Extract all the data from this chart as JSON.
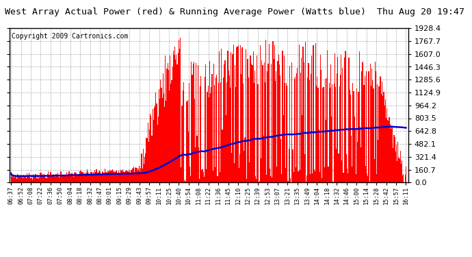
{
  "title": "West Array Actual Power (red) & Running Average Power (Watts blue)  Thu Aug 20 19:47",
  "copyright": "Copyright 2009 Cartronics.com",
  "yticks": [
    0.0,
    160.7,
    321.4,
    482.1,
    642.8,
    803.5,
    964.2,
    1124.9,
    1285.6,
    1446.3,
    1607.0,
    1767.7,
    1928.4
  ],
  "ymax": 1928.4,
  "ymin": 0.0,
  "bar_color": "#ff0000",
  "avg_color": "#0000cc",
  "bg_color": "#ffffff",
  "grid_color": "#aaaaaa",
  "title_fontsize": 9.5,
  "copyright_fontsize": 7.0
}
